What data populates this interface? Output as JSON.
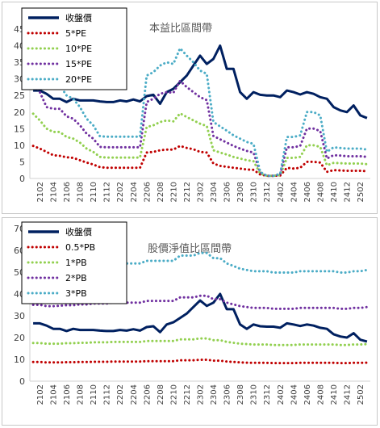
{
  "chart_data": [
    {
      "type": "line",
      "title": "本益比區間帶",
      "xlabel": "",
      "ylabel": "",
      "ylim": [
        0,
        45
      ],
      "y_ticks": [
        0,
        5,
        10,
        15,
        20,
        25,
        30,
        35,
        40,
        45
      ],
      "grid": false,
      "legend_position": "top-left",
      "x": [
        "2101",
        "2102",
        "2103",
        "2104",
        "2105",
        "2106",
        "2107",
        "2108",
        "2109",
        "2110",
        "2111",
        "2112",
        "2201",
        "2202",
        "2203",
        "2204",
        "2205",
        "2206",
        "2207",
        "2208",
        "2209",
        "2210",
        "2211",
        "2212",
        "2301",
        "2302",
        "2303",
        "2304",
        "2305",
        "2306",
        "2307",
        "2308",
        "2309",
        "2310",
        "2311",
        "2312",
        "2401",
        "2402",
        "2403",
        "2404",
        "2405",
        "2406",
        "2407",
        "2408",
        "2409",
        "2410",
        "2411",
        "2412",
        "2501",
        "2502",
        "2503"
      ],
      "x_tick_labels": [
        "2102",
        "2104",
        "2106",
        "2108",
        "2110",
        "2112",
        "2202",
        "2204",
        "2206",
        "2208",
        "2210",
        "2212",
        "2302",
        "2304",
        "2306",
        "2308",
        "2310",
        "2312",
        "2402",
        "2404",
        "2406",
        "2408",
        "2410",
        "2412",
        "2502"
      ],
      "series": [
        {
          "name": "收盤價",
          "color": "#002060",
          "style": "solid",
          "values": [
            26.5,
            26.5,
            25.5,
            24,
            24,
            23,
            24,
            23.5,
            23.5,
            23.5,
            23.2,
            23,
            23,
            23.5,
            23.2,
            23.8,
            23.2,
            24.8,
            25.2,
            22.5,
            26,
            27,
            29,
            31,
            34,
            37,
            34.5,
            36,
            40,
            33,
            33,
            26,
            24,
            26,
            25.2,
            25,
            25,
            24.5,
            26.5,
            26,
            25.3,
            26,
            25.5,
            24.5,
            24,
            21.5,
            20.5,
            20,
            22,
            19,
            18.2
          ]
        },
        {
          "name": "5*PE",
          "color": "#c00000",
          "style": "dotted",
          "values": [
            9.8,
            9,
            8,
            7,
            6.8,
            6.4,
            6.2,
            5.5,
            4.8,
            4.2,
            3.4,
            3.2,
            3.2,
            3.2,
            3.2,
            3.2,
            3.2,
            7.8,
            8,
            8.5,
            8.7,
            8.7,
            9.8,
            9.2,
            8.8,
            8,
            7.8,
            4.5,
            3.8,
            3.5,
            3.2,
            3,
            2.7,
            2.6,
            1.2,
            0.8,
            0.8,
            0.9,
            3.2,
            3,
            3.2,
            5,
            5,
            4.8,
            2,
            2.5,
            2.4,
            2.3,
            2.3,
            2.3,
            2.2
          ]
        },
        {
          "name": "10*PE",
          "color": "#92d050",
          "style": "dotted",
          "values": [
            19.5,
            17.5,
            15,
            14,
            14,
            12.5,
            12,
            10.8,
            9,
            8,
            6.5,
            6.3,
            6.3,
            6.3,
            6.3,
            6.3,
            6.3,
            15.5,
            16,
            17,
            17.5,
            17.2,
            19.6,
            18.5,
            17.5,
            16.5,
            15.8,
            8.5,
            7.8,
            7.2,
            6.5,
            6,
            5.5,
            5.2,
            1.5,
            0.8,
            0.8,
            1,
            6.2,
            6.2,
            6.5,
            10,
            10,
            9.5,
            4,
            4.7,
            4.6,
            4.5,
            4.5,
            4.5,
            4.3
          ]
        },
        {
          "name": "15*PE",
          "color": "#7030a0",
          "style": "dotted",
          "values": [
            29,
            26,
            21.5,
            21,
            21,
            18.7,
            18,
            16,
            13.5,
            12,
            9.5,
            9.4,
            9.4,
            9.4,
            9.4,
            9.4,
            9.4,
            23,
            24,
            25.5,
            26,
            25.8,
            29.4,
            27.5,
            26,
            24.5,
            23.6,
            12.8,
            11.8,
            10.8,
            9.8,
            9,
            8.3,
            7.8,
            1.8,
            0.8,
            0.8,
            1.2,
            9.4,
            9.4,
            9.8,
            15,
            15,
            14.3,
            6,
            7,
            6.9,
            6.7,
            6.7,
            6.7,
            6.5
          ]
        },
        {
          "name": "20*PE",
          "color": "#4bacc6",
          "style": "dotted",
          "values": [
            39,
            34.5,
            29,
            28,
            28,
            25,
            24,
            21.5,
            18,
            16,
            12.7,
            12.6,
            12.6,
            12.6,
            12.6,
            12.6,
            12.6,
            31,
            32,
            34,
            35,
            34.5,
            39.2,
            37,
            35,
            32.5,
            31.5,
            17,
            15.7,
            14.4,
            13,
            12,
            11,
            10.4,
            2,
            0.8,
            0.8,
            1.4,
            12.5,
            12.5,
            13,
            20,
            20,
            19,
            8,
            9.4,
            9.2,
            9,
            9,
            9,
            8.7
          ]
        }
      ]
    },
    {
      "type": "line",
      "title": "股價淨值比區間帶",
      "xlabel": "",
      "ylabel": "",
      "ylim": [
        0,
        70
      ],
      "y_ticks": [
        0,
        10,
        20,
        30,
        40,
        50,
        60,
        70
      ],
      "grid": false,
      "legend_position": "top-left",
      "x": [
        "2101",
        "2102",
        "2103",
        "2104",
        "2105",
        "2106",
        "2107",
        "2108",
        "2109",
        "2110",
        "2111",
        "2112",
        "2201",
        "2202",
        "2203",
        "2204",
        "2205",
        "2206",
        "2207",
        "2208",
        "2209",
        "2210",
        "2211",
        "2212",
        "2301",
        "2302",
        "2303",
        "2304",
        "2305",
        "2306",
        "2307",
        "2308",
        "2309",
        "2310",
        "2311",
        "2312",
        "2401",
        "2402",
        "2403",
        "2404",
        "2405",
        "2406",
        "2407",
        "2408",
        "2409",
        "2410",
        "2411",
        "2412",
        "2501",
        "2502",
        "2503"
      ],
      "x_tick_labels": [
        "2102",
        "2104",
        "2106",
        "2108",
        "2110",
        "2112",
        "2202",
        "2204",
        "2206",
        "2208",
        "2210",
        "2212",
        "2302",
        "2304",
        "2306",
        "2308",
        "2310",
        "2312",
        "2402",
        "2404",
        "2406",
        "2408",
        "2410",
        "2412",
        "2502"
      ],
      "series": [
        {
          "name": "收盤價",
          "color": "#002060",
          "style": "solid",
          "values": [
            26.5,
            26.5,
            25.5,
            24,
            24,
            23,
            24,
            23.5,
            23.5,
            23.5,
            23.2,
            23,
            23,
            23.5,
            23.2,
            23.8,
            23.2,
            24.8,
            25.2,
            22.5,
            26,
            27,
            29,
            31,
            34,
            37,
            34.5,
            36,
            40,
            33,
            33,
            26,
            24,
            26,
            25.2,
            25,
            25,
            24.5,
            26.5,
            26,
            25.3,
            26,
            25.5,
            24.5,
            24,
            21.5,
            20.5,
            20,
            22,
            19,
            18.2
          ]
        },
        {
          "name": "0.5*PB",
          "color": "#c00000",
          "style": "dotted",
          "values": [
            8.8,
            8.8,
            8.6,
            8.6,
            8.6,
            8.7,
            8.7,
            8.8,
            8.8,
            8.9,
            8.9,
            8.9,
            9,
            9,
            9,
            9,
            9,
            9.2,
            9.2,
            9.2,
            9.2,
            9.2,
            9.6,
            9.6,
            9.6,
            9.8,
            9.8,
            9.4,
            9.4,
            9,
            8.8,
            8.6,
            8.5,
            8.4,
            8.4,
            8.4,
            8.3,
            8.3,
            8.3,
            8.3,
            8.4,
            8.4,
            8.4,
            8.4,
            8.4,
            8.4,
            8.3,
            8.3,
            8.4,
            8.4,
            8.5
          ]
        },
        {
          "name": "1*PB",
          "color": "#92d050",
          "style": "dotted",
          "values": [
            17.5,
            17.5,
            17.2,
            17.2,
            17.2,
            17.4,
            17.4,
            17.6,
            17.6,
            17.8,
            17.8,
            17.8,
            18,
            18,
            18,
            18,
            18,
            18.4,
            18.4,
            18.4,
            18.4,
            18.4,
            19.2,
            19.2,
            19.2,
            19.6,
            19.6,
            18.8,
            18.8,
            18,
            17.6,
            17.2,
            17,
            16.8,
            16.8,
            16.8,
            16.6,
            16.6,
            16.6,
            16.6,
            16.8,
            16.8,
            16.8,
            16.8,
            16.8,
            16.8,
            16.6,
            16.6,
            16.8,
            16.8,
            17
          ]
        },
        {
          "name": "2*PB",
          "color": "#7030a0",
          "style": "dotted",
          "values": [
            35,
            35,
            34.4,
            34.4,
            34.6,
            34.8,
            34.8,
            35.2,
            35.2,
            35.6,
            35.6,
            35.6,
            36,
            36,
            36,
            36,
            36,
            36.8,
            36.8,
            36.8,
            36.8,
            36.8,
            38.4,
            38.4,
            38.4,
            39.2,
            39.2,
            37.6,
            37.6,
            36,
            35.2,
            34.4,
            34,
            33.6,
            33.6,
            33.6,
            33.2,
            33.2,
            33.2,
            33.2,
            33.6,
            33.6,
            33.6,
            33.6,
            33.6,
            33.6,
            33.2,
            33.2,
            33.6,
            33.6,
            34
          ]
        },
        {
          "name": "3*PB",
          "color": "#4bacc6",
          "style": "dotted",
          "values": [
            52.5,
            52.5,
            51.6,
            51.6,
            51.9,
            52.2,
            52.2,
            52.8,
            52.8,
            53.4,
            53.4,
            53.4,
            54,
            54,
            54,
            54,
            54,
            55.2,
            55.2,
            55.2,
            55.2,
            55.2,
            57.6,
            57.6,
            57.6,
            58.8,
            58.8,
            56.4,
            56.4,
            54,
            52.8,
            51.6,
            51,
            50.4,
            50.4,
            50.4,
            49.8,
            49.8,
            49.8,
            49.8,
            50.4,
            50.4,
            50.4,
            50.4,
            50.4,
            50.4,
            49.8,
            49.8,
            50.4,
            50.4,
            51
          ]
        }
      ]
    }
  ]
}
